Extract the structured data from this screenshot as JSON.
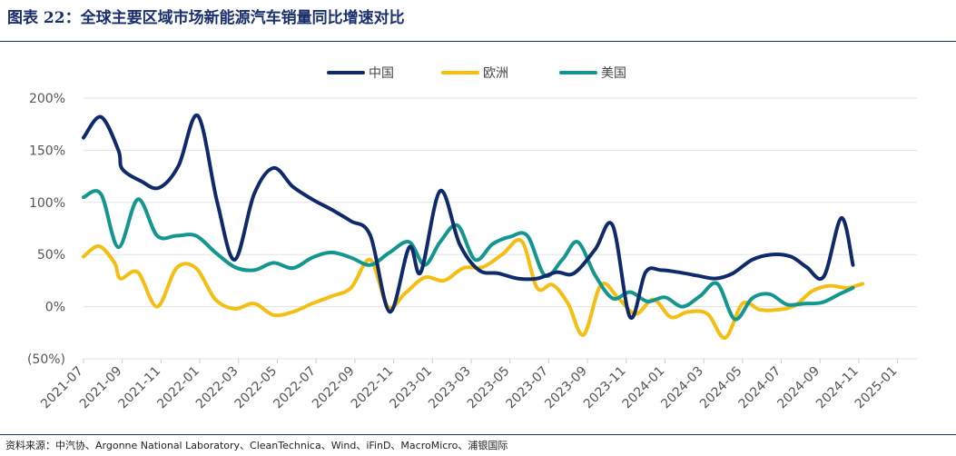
{
  "header": {
    "title": "图表 22：全球主要区域市场新能源汽车销量同比增速对比"
  },
  "footer": {
    "source": "资料来源：中汽协、Argonne National Laboratory、CleanTechnica、Wind、iFinD、MacroMicro、浦银国际"
  },
  "colors": {
    "china": "#0f2a6b",
    "europe": "#f4be12",
    "usa": "#12968f",
    "grid": "#e3e3e3",
    "axis": "#cccccc"
  },
  "chart_data": {
    "type": "line",
    "title": "全球主要区域市场新能源汽车销量同比增速对比",
    "ylim": [
      -50,
      200
    ],
    "yticks": [
      -50,
      0,
      50,
      100,
      150,
      200
    ],
    "ytick_labels": [
      "(50%)",
      "0%",
      "50%",
      "100%",
      "150%",
      "200%"
    ],
    "xlim": [
      0,
      43
    ],
    "xtick_positions": [
      0,
      2,
      4,
      6,
      8,
      10,
      12,
      14,
      16,
      18,
      20,
      22,
      24,
      26,
      28,
      30,
      32,
      34,
      36,
      38,
      40,
      42
    ],
    "xtick_labels": [
      "2021-07",
      "2021-09",
      "2021-11",
      "2022-01",
      "2022-03",
      "2022-05",
      "2022-07",
      "2022-09",
      "2022-11",
      "2023-01",
      "2023-03",
      "2023-05",
      "2023-07",
      "2023-09",
      "2023-11",
      "2024-01",
      "2024-03",
      "2024-05",
      "2024-07",
      "2024-09",
      "2024-11",
      "2025-01"
    ],
    "legend_position": "top-center",
    "grid": true,
    "series": [
      {
        "name": "中国",
        "color_key": "china",
        "points": [
          [
            0,
            162
          ],
          [
            0.9,
            182
          ],
          [
            1.8,
            150
          ],
          [
            2,
            132
          ],
          [
            3,
            120
          ],
          [
            3.9,
            114
          ],
          [
            4.9,
            135
          ],
          [
            5.9,
            183
          ],
          [
            6.9,
            100
          ],
          [
            7.8,
            45
          ],
          [
            8.8,
            108
          ],
          [
            9.8,
            133
          ],
          [
            10.8,
            115
          ],
          [
            11.8,
            103
          ],
          [
            12.8,
            93
          ],
          [
            13.8,
            82
          ],
          [
            14.8,
            68
          ],
          [
            15.8,
            -5
          ],
          [
            16.8,
            57
          ],
          [
            17.4,
            33
          ],
          [
            18.4,
            111
          ],
          [
            19.4,
            60
          ],
          [
            20.4,
            35
          ],
          [
            21.4,
            32
          ],
          [
            22.4,
            27
          ],
          [
            23.4,
            27
          ],
          [
            24.4,
            33
          ],
          [
            25.3,
            32
          ],
          [
            26.4,
            55
          ],
          [
            27.3,
            78
          ],
          [
            28.2,
            -10
          ],
          [
            29,
            33
          ],
          [
            29.8,
            35
          ],
          [
            30.7,
            33
          ],
          [
            31.6,
            30
          ],
          [
            32.6,
            27
          ],
          [
            33.5,
            32
          ],
          [
            34.5,
            45
          ],
          [
            35.5,
            50
          ],
          [
            36.5,
            48
          ],
          [
            37.3,
            38
          ],
          [
            38.2,
            29
          ],
          [
            39.1,
            85
          ],
          [
            39.7,
            40
          ]
        ]
      },
      {
        "name": "欧洲",
        "color_key": "europe",
        "points": [
          [
            0,
            48
          ],
          [
            0.8,
            58
          ],
          [
            1.6,
            42
          ],
          [
            1.9,
            27
          ],
          [
            2.8,
            33
          ],
          [
            3.8,
            0
          ],
          [
            4.8,
            37
          ],
          [
            5.8,
            37
          ],
          [
            6.8,
            7
          ],
          [
            7.8,
            -2
          ],
          [
            8.8,
            3
          ],
          [
            9.8,
            -8
          ],
          [
            10.8,
            -5
          ],
          [
            11.8,
            3
          ],
          [
            12.8,
            10
          ],
          [
            13.8,
            18
          ],
          [
            14.8,
            45
          ],
          [
            15.7,
            0
          ],
          [
            16.6,
            13
          ],
          [
            17.6,
            28
          ],
          [
            18.6,
            25
          ],
          [
            19.6,
            37
          ],
          [
            20.6,
            38
          ],
          [
            21.6,
            50
          ],
          [
            22.6,
            63
          ],
          [
            23.4,
            18
          ],
          [
            24.2,
            21
          ],
          [
            25,
            3
          ],
          [
            25.8,
            -27
          ],
          [
            26.7,
            21
          ],
          [
            27.6,
            8
          ],
          [
            28.5,
            -7
          ],
          [
            29.4,
            7
          ],
          [
            30.3,
            -10
          ],
          [
            31.2,
            -5
          ],
          [
            32.2,
            -7
          ],
          [
            33.1,
            -30
          ],
          [
            34,
            3
          ],
          [
            34.9,
            -3
          ],
          [
            35.8,
            -3
          ],
          [
            36.7,
            1
          ],
          [
            37.6,
            15
          ],
          [
            38.5,
            20
          ],
          [
            39.4,
            18
          ],
          [
            40.2,
            22
          ]
        ]
      },
      {
        "name": "美国",
        "color_key": "usa",
        "points": [
          [
            0,
            105
          ],
          [
            0.9,
            108
          ],
          [
            1.8,
            57
          ],
          [
            2.8,
            103
          ],
          [
            3.8,
            68
          ],
          [
            4.8,
            68
          ],
          [
            5.8,
            68
          ],
          [
            6.8,
            52
          ],
          [
            7.8,
            38
          ],
          [
            8.8,
            35
          ],
          [
            9.8,
            42
          ],
          [
            10.8,
            37
          ],
          [
            11.8,
            47
          ],
          [
            12.8,
            52
          ],
          [
            13.8,
            47
          ],
          [
            14.8,
            40
          ],
          [
            15.8,
            52
          ],
          [
            16.8,
            62
          ],
          [
            17.6,
            40
          ],
          [
            18.4,
            62
          ],
          [
            19.3,
            78
          ],
          [
            20.2,
            45
          ],
          [
            21.1,
            60
          ],
          [
            22,
            67
          ],
          [
            22.9,
            68
          ],
          [
            23.8,
            30
          ],
          [
            24.7,
            45
          ],
          [
            25.5,
            62
          ],
          [
            26.4,
            30
          ],
          [
            27.3,
            8
          ],
          [
            28.2,
            14
          ],
          [
            29.1,
            5
          ],
          [
            30,
            9
          ],
          [
            30.9,
            0
          ],
          [
            31.8,
            10
          ],
          [
            32.7,
            22
          ],
          [
            33.6,
            -12
          ],
          [
            34.5,
            8
          ],
          [
            35.4,
            12
          ],
          [
            36.3,
            2
          ],
          [
            37.2,
            3
          ],
          [
            38.1,
            4
          ],
          [
            39,
            12
          ],
          [
            39.7,
            18
          ]
        ]
      }
    ]
  }
}
